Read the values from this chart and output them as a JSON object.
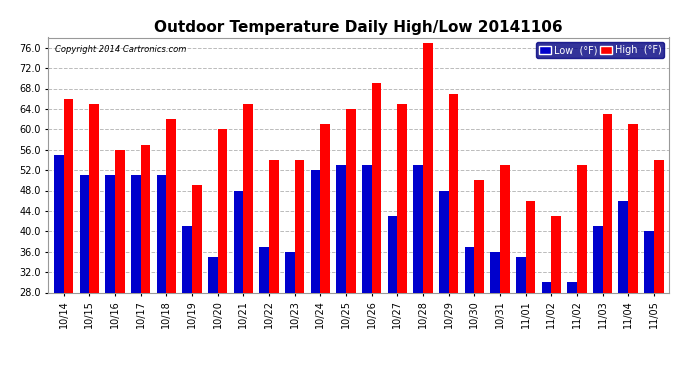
{
  "title": "Outdoor Temperature Daily High/Low 20141106",
  "copyright": "Copyright 2014 Cartronics.com",
  "legend_low": "Low  (°F)",
  "legend_high": "High  (°F)",
  "dates": [
    "10/14",
    "10/15",
    "10/16",
    "10/17",
    "10/18",
    "10/19",
    "10/20",
    "10/21",
    "10/22",
    "10/23",
    "10/24",
    "10/25",
    "10/26",
    "10/27",
    "10/28",
    "10/29",
    "10/30",
    "10/31",
    "11/01",
    "11/02",
    "11/02",
    "11/03",
    "11/04",
    "11/05"
  ],
  "high": [
    66,
    65,
    56,
    57,
    62,
    49,
    60,
    65,
    54,
    54,
    61,
    64,
    69,
    65,
    77,
    67,
    50,
    53,
    46,
    43,
    53,
    63,
    61,
    54
  ],
  "low": [
    55,
    51,
    51,
    51,
    51,
    41,
    35,
    48,
    37,
    36,
    52,
    53,
    53,
    43,
    53,
    48,
    37,
    36,
    35,
    30,
    30,
    41,
    46,
    40
  ],
  "bar_color_high": "#ff0000",
  "bar_color_low": "#0000cc",
  "bg_color": "#ffffff",
  "grid_color": "#bbbbbb",
  "ylim": [
    28.0,
    78.0
  ],
  "ymin": 28.0,
  "yticks": [
    28.0,
    32.0,
    36.0,
    40.0,
    44.0,
    48.0,
    52.0,
    56.0,
    60.0,
    64.0,
    68.0,
    72.0,
    76.0
  ],
  "title_fontsize": 11,
  "tick_fontsize": 7,
  "bar_width": 0.38
}
